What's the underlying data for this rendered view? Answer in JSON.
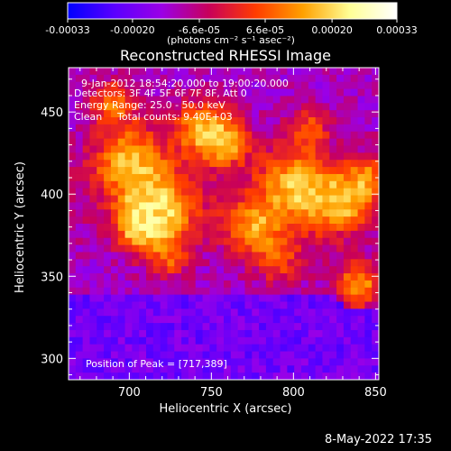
{
  "colorbar": {
    "ticks": [
      "-0.00033",
      "-0.00020",
      "-6.6e-05",
      "6.6e-05",
      "0.00020",
      "0.00033"
    ],
    "tick_values": [
      -0.00033,
      -0.0002,
      -6.6e-05,
      6.6e-05,
      0.0002,
      0.00033
    ],
    "range": [
      -0.00033,
      0.00033
    ],
    "units": "(photons cm⁻² s⁻¹ asec⁻²)",
    "colors": [
      "#0000ff",
      "#5a00ff",
      "#9b00e6",
      "#c8005a",
      "#ff3c00",
      "#ffa000",
      "#ffff96",
      "#ffffff"
    ]
  },
  "chart_data": {
    "type": "heatmap",
    "title": "Reconstructed RHESSI Image",
    "xlabel": "Heliocentric X (arcsec)",
    "ylabel": "Heliocentric Y (arcsec)",
    "xlim": [
      663,
      852
    ],
    "ylim": [
      287,
      477
    ],
    "xticks": [
      700,
      750,
      800,
      850
    ],
    "yticks": [
      300,
      350,
      400,
      450
    ],
    "annotations": {
      "time_range": "9-Jan-2012 18:54:20.000 to 19:00:20.000",
      "detectors": "Detectors: 3F 4F 5F 6F 7F 8F, Att 0",
      "energy": "Energy Range: 25.0 - 50.0 keV",
      "clean": "Clean",
      "counts": "Total counts: 9.40E+03",
      "peak": "Position of Peak = [717,389]"
    },
    "peak": [
      717,
      389
    ],
    "grid": false
  },
  "footer_date": "8-May-2022 17:35"
}
